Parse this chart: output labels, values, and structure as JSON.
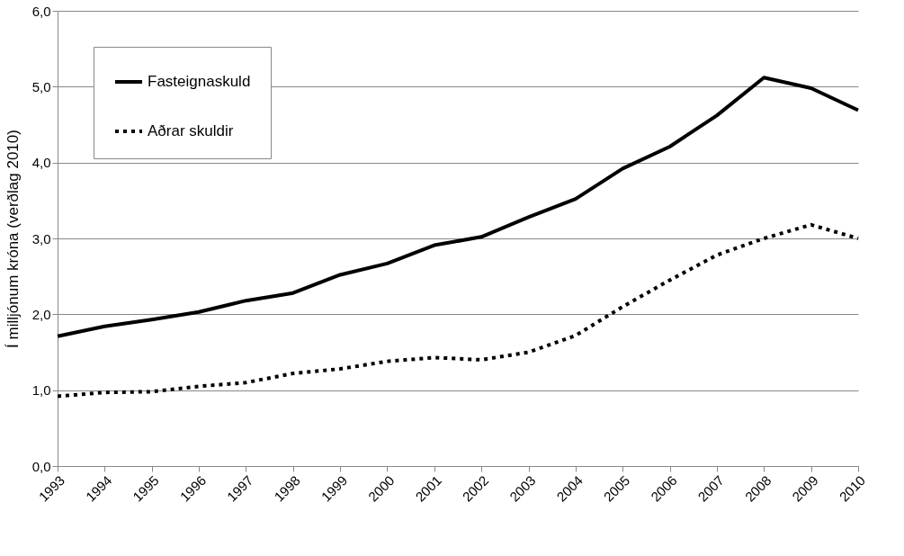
{
  "chart_data": {
    "type": "line",
    "ylabel": "Í milljónum króna (verðlag 2010)",
    "categories": [
      "1993",
      "1994",
      "1995",
      "1996",
      "1997",
      "1998",
      "1999",
      "2000",
      "2001",
      "2002",
      "2003",
      "2004",
      "2005",
      "2006",
      "2007",
      "2008",
      "2009",
      "2010"
    ],
    "series": [
      {
        "name": "Fasteignaskuld",
        "color": "#000000",
        "line_style": "solid",
        "values": [
          1.71,
          1.84,
          1.93,
          2.03,
          2.18,
          2.28,
          2.52,
          2.67,
          2.91,
          3.02,
          3.28,
          3.52,
          3.92,
          4.21,
          4.62,
          5.12,
          4.98,
          4.69
        ]
      },
      {
        "name": "Aðrar skuldir",
        "color": "#000000",
        "line_style": "dotted",
        "values": [
          0.92,
          0.97,
          0.98,
          1.05,
          1.1,
          1.22,
          1.28,
          1.38,
          1.43,
          1.4,
          1.5,
          1.72,
          2.1,
          2.45,
          2.78,
          3.0,
          3.18,
          3.0
        ]
      }
    ],
    "ylim": [
      0,
      6
    ],
    "yticks": [
      {
        "value": 0,
        "label": "0,0"
      },
      {
        "value": 1,
        "label": "1,0"
      },
      {
        "value": 2,
        "label": "2,0"
      },
      {
        "value": 3,
        "label": "3,0"
      },
      {
        "value": 4,
        "label": "4,0"
      },
      {
        "value": 5,
        "label": "5,0"
      },
      {
        "value": 6,
        "label": "6,0"
      }
    ],
    "grid": "y",
    "legend": "top left",
    "marker": "none"
  }
}
